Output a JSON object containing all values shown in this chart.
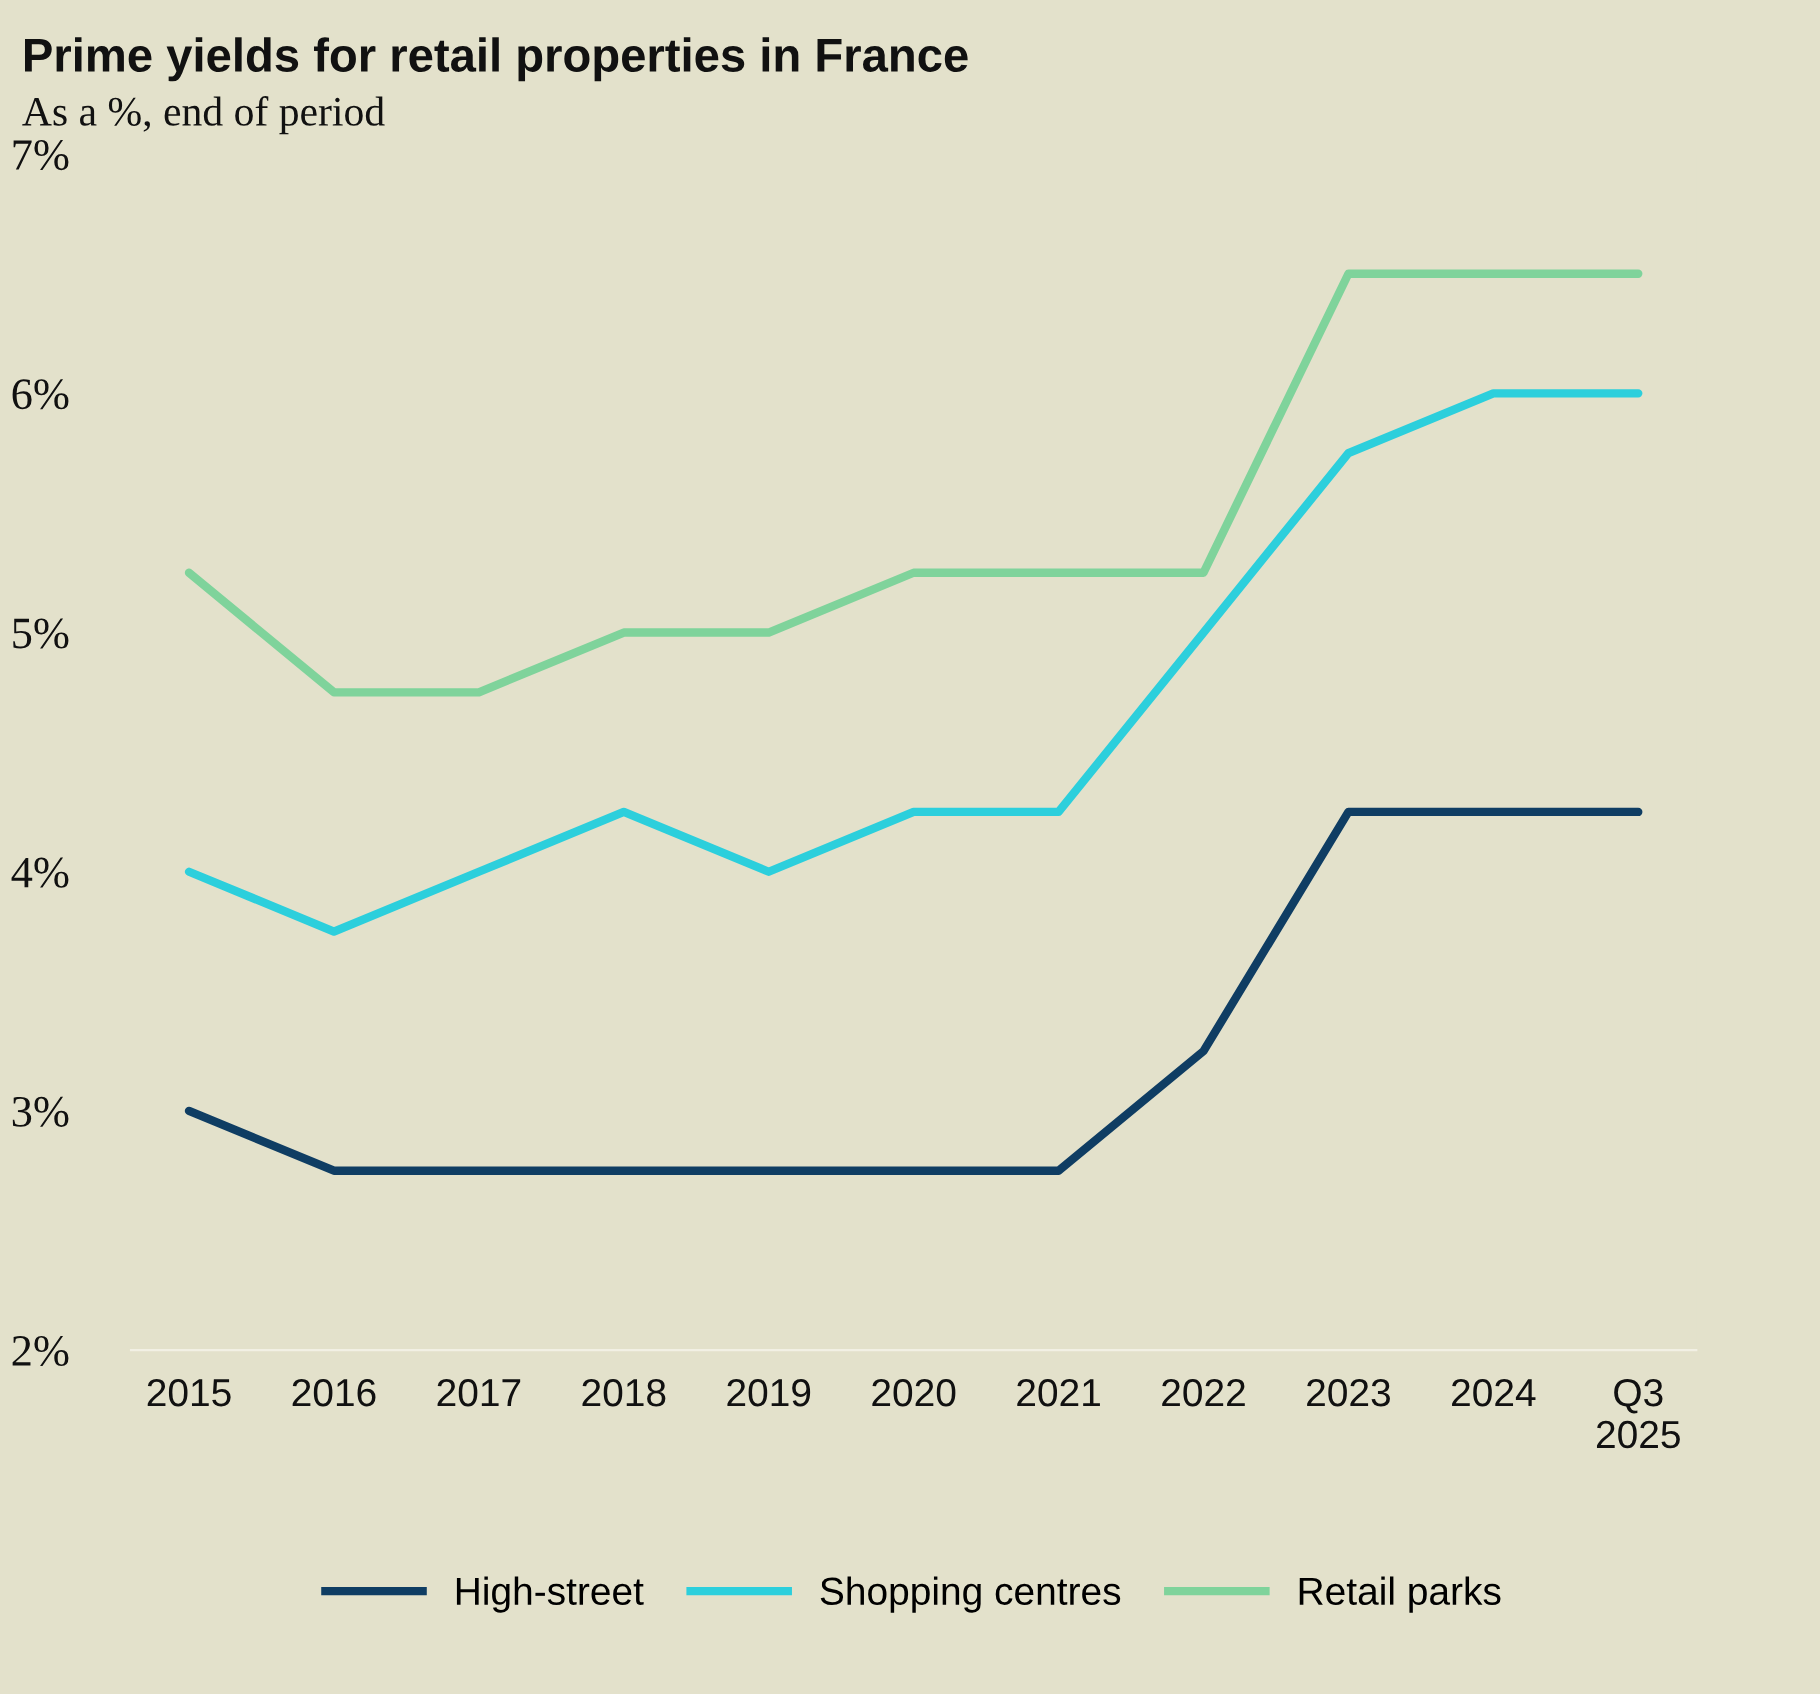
{
  "chart_data": {
    "type": "line",
    "title": "Prime yields for retail properties in France",
    "subtitle": "As a %, end of period",
    "categories": [
      "2015",
      "2016",
      "2017",
      "2018",
      "2019",
      "2020",
      "2021",
      "2022",
      "2023",
      "2024",
      "Q3\n2025"
    ],
    "series": [
      {
        "name": "High-street",
        "color": "#0f3d63",
        "values": [
          3.0,
          2.75,
          2.75,
          2.75,
          2.75,
          2.75,
          2.75,
          3.25,
          4.25,
          4.25,
          4.25
        ]
      },
      {
        "name": "Shopping centres",
        "color": "#2ccfdc",
        "values": [
          4.0,
          3.75,
          4.0,
          4.25,
          4.0,
          4.25,
          4.25,
          5.0,
          5.75,
          6.0,
          6.0
        ]
      },
      {
        "name": "Retail parks",
        "color": "#7fd39b",
        "values": [
          5.25,
          4.75,
          4.75,
          5.0,
          5.0,
          5.25,
          5.25,
          5.25,
          6.5,
          6.5,
          6.5
        ]
      }
    ],
    "ylim": [
      2,
      7
    ],
    "yticks": [
      {
        "value": 2,
        "label": "2%"
      },
      {
        "value": 3,
        "label": "3%"
      },
      {
        "value": 4,
        "label": "4%"
      },
      {
        "value": 5,
        "label": "5%"
      },
      {
        "value": 6,
        "label": "6%"
      },
      {
        "value": 7,
        "label": "7%"
      }
    ],
    "grid": false,
    "legend": "bottom",
    "marker": "none",
    "line_style": "solid"
  }
}
